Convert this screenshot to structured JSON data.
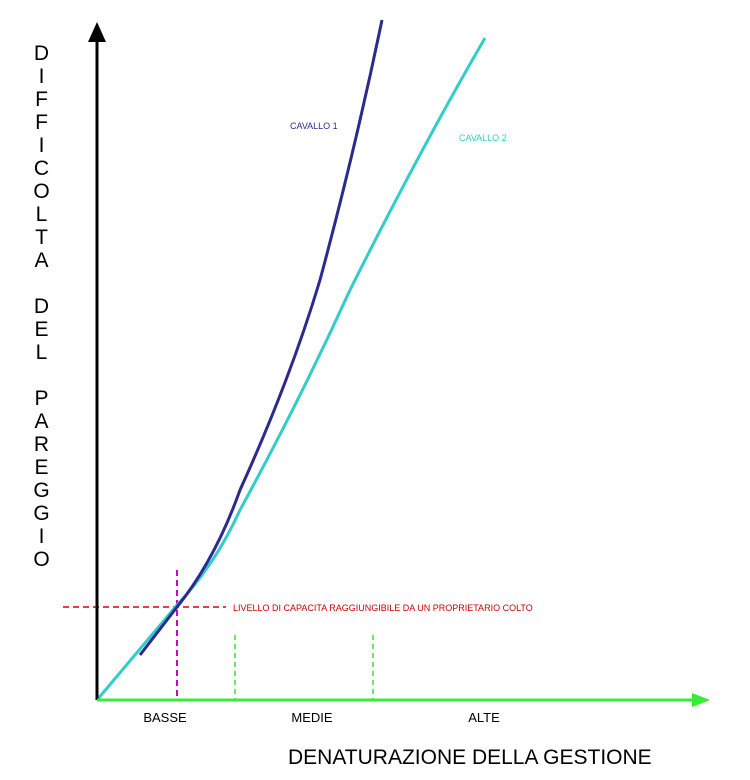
{
  "y_axis": {
    "title": "DIFFICOLTA DEL PAREGGIO"
  },
  "x_axis": {
    "title": "DENATURAZIONE DELLA GESTIONE",
    "categories": [
      "BASSE",
      "MEDIE",
      "ALTE"
    ]
  },
  "series": [
    {
      "name": "CAVALLO 1",
      "color": "#2b2b8f"
    },
    {
      "name": "CAVALLO 2",
      "color": "#33cccc"
    }
  ],
  "threshold": {
    "label": "LIVELLO DI CAPACITA RAGGIUNGIBILE DA UN PROPRIETARIO COLTO",
    "color": "#cc0000"
  }
}
